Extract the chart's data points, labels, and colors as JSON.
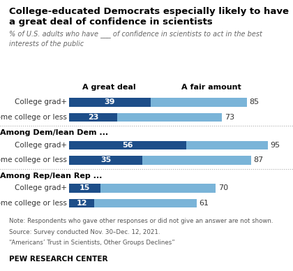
{
  "title_line1": "College-educated Democrats especially likely to have",
  "title_line2": "a great deal of confidence in scientists",
  "subtitle": "% of U.S. adults who have ___ of confidence in scientists to act in the best\ninterests of the public",
  "col_header_great": "A great deal",
  "col_header_fair": "A fair amount",
  "groups": [
    {
      "label": null,
      "rows": [
        {
          "category": "College grad+",
          "great": 39,
          "fair": 85
        },
        {
          "category": "Some college or less",
          "great": 23,
          "fair": 73
        }
      ]
    },
    {
      "label": "Among Dem/lean Dem ...",
      "rows": [
        {
          "category": "College grad+",
          "great": 56,
          "fair": 95
        },
        {
          "category": "Some college or less",
          "great": 35,
          "fair": 87
        }
      ]
    },
    {
      "label": "Among Rep/lean Rep ...",
      "rows": [
        {
          "category": "College grad+",
          "great": 15,
          "fair": 70
        },
        {
          "category": "Some college or less",
          "great": 12,
          "fair": 61
        }
      ]
    }
  ],
  "color_great": "#1d4e89",
  "color_fair": "#7ab4d8",
  "note_line1": "Note: Respondents who gave other responses or did not give an answer are not shown.",
  "note_line2": "Source: Survey conducted Nov. 30–Dec. 12, 2021.",
  "note_line3": "“Americans’ Trust in Scientists, Other Groups Declines”",
  "footer": "PEW RESEARCH CENTER"
}
